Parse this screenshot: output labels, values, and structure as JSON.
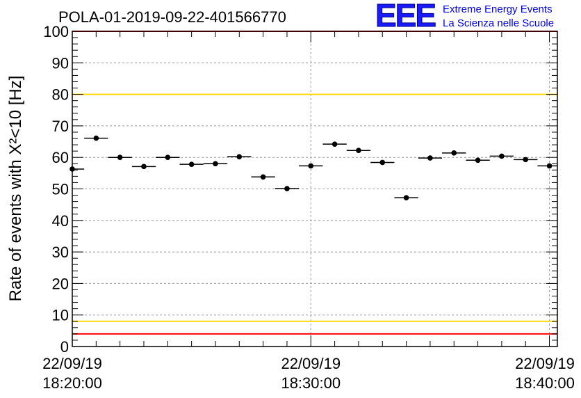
{
  "header": {
    "title": "POLA-01-2019-09-22-401566770",
    "logo": {
      "letters": "EEE",
      "line1": "Extreme Energy Events",
      "line2": "La Scienza nelle Scuole"
    }
  },
  "chart_data": {
    "type": "scatter",
    "title": "POLA-01-2019-09-22-401566770",
    "ylabel": "Rate of events with X²<10 [Hz]",
    "ylim": [
      0,
      100
    ],
    "y_ticks": [
      "0",
      "10",
      "20",
      "30",
      "40",
      "50",
      "60",
      "70",
      "80",
      "90",
      "100"
    ],
    "x_tick_labels": [
      {
        "date": "22/09/19",
        "time": "18:20:00"
      },
      {
        "date": "22/09/19",
        "time": "18:30:00"
      },
      {
        "date": "22/09/19",
        "time": "18:40:00"
      }
    ],
    "grid": true,
    "x_range": [
      "18:20:00",
      "18:40:20"
    ],
    "thresholds": [
      {
        "value": 100,
        "color": "#ff0000"
      },
      {
        "value": 80,
        "color": "#ffd700"
      },
      {
        "value": 8,
        "color": "#ffd700"
      },
      {
        "value": 4,
        "color": "#ff0000"
      }
    ],
    "bin_width_s": 60,
    "x": [
      "18:20:00",
      "18:21:00",
      "18:22:00",
      "18:23:00",
      "18:24:00",
      "18:25:00",
      "18:26:00",
      "18:27:00",
      "18:28:00",
      "18:29:00",
      "18:30:00",
      "18:31:00",
      "18:32:00",
      "18:33:00",
      "18:34:00",
      "18:35:00",
      "18:36:00",
      "18:37:00",
      "18:38:00",
      "18:39:00",
      "18:40:00"
    ],
    "values": [
      56.3,
      66.1,
      60.0,
      57.1,
      60.0,
      57.8,
      58.0,
      60.2,
      53.8,
      50.1,
      57.3,
      64.2,
      62.2,
      58.4,
      47.2,
      59.8,
      61.4,
      59.1,
      60.4,
      59.3,
      57.3
    ],
    "marker_color": "#000000"
  }
}
